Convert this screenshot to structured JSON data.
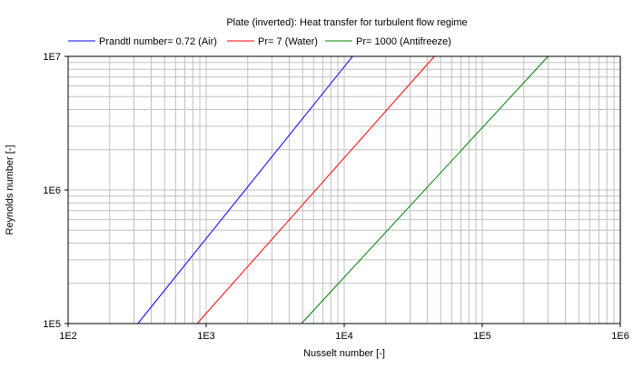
{
  "chart_data": {
    "type": "line",
    "title": "Plate (inverted): Heat transfer for turbulent flow regime",
    "xlabel": "Nusselt number [-]",
    "ylabel": "Reynolds number [-]",
    "x_scale": "log",
    "y_scale": "log",
    "xlim": [
      100,
      1000000
    ],
    "ylim": [
      100000,
      10000000
    ],
    "x_ticks": [
      {
        "value": 100,
        "label": "1E2"
      },
      {
        "value": 1000,
        "label": "1E3"
      },
      {
        "value": 10000,
        "label": "1E4"
      },
      {
        "value": 100000,
        "label": "1E5"
      },
      {
        "value": 1000000,
        "label": "1E6"
      }
    ],
    "y_ticks": [
      {
        "value": 100000,
        "label": "1E5"
      },
      {
        "value": 1000000,
        "label": "1E6"
      },
      {
        "value": 10000000,
        "label": "1E7"
      }
    ],
    "grid": true,
    "legend_position": "top",
    "series": [
      {
        "name": "Prandtl number= 0.72 (Air)",
        "color": "#0000ff",
        "points": [
          {
            "x": 320,
            "y": 100000
          },
          {
            "x": 11500,
            "y": 10000000
          }
        ]
      },
      {
        "name": "Pr= 7 (Water)",
        "color": "#ff0000",
        "points": [
          {
            "x": 860,
            "y": 100000
          },
          {
            "x": 45000,
            "y": 10000000
          }
        ]
      },
      {
        "name": "Pr= 1000 (Antifreeze)",
        "color": "#008000",
        "points": [
          {
            "x": 4900,
            "y": 100000
          },
          {
            "x": 300000,
            "y": 10000000
          }
        ]
      }
    ]
  }
}
